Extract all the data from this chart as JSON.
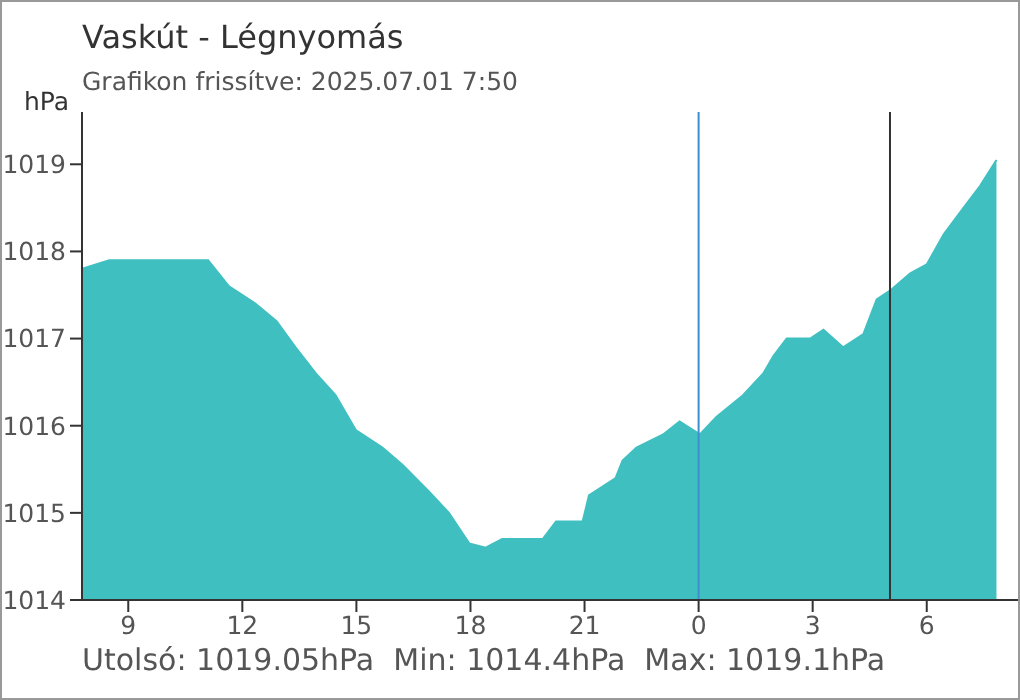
{
  "chart_data": {
    "type": "area",
    "title": "Vaskút - Légnyomás",
    "subtitle": "Grafikon frissítve: 2025.07.01 7:50",
    "ylabel": "hPa",
    "annotations": [
      "Utolsó: 1019.05hPa  Min: 1014.4hPa  Max: 1019.1hPa"
    ],
    "x": [
      "2025-06-30T07:47",
      "2025-06-30T08:30",
      "2025-06-30T09:00",
      "2025-06-30T10:04",
      "2025-06-30T11:06",
      "2025-06-30T11:39",
      "2025-06-30T12:21",
      "2025-06-30T12:54",
      "2025-06-30T13:24",
      "2025-06-30T13:56",
      "2025-06-30T14:27",
      "2025-06-30T14:59",
      "2025-06-30T15:41",
      "2025-06-30T16:13",
      "2025-06-30T16:54",
      "2025-06-30T17:26",
      "2025-06-30T17:58",
      "2025-06-30T18:24",
      "2025-06-30T18:50",
      "2025-06-30T19:22",
      "2025-06-30T19:54",
      "2025-06-30T20:15",
      "2025-06-30T20:57",
      "2025-06-30T21:07",
      "2025-06-30T21:49",
      "2025-06-30T22:00",
      "2025-06-30T22:22",
      "2025-06-30T23:04",
      "2025-06-30T23:30",
      "2025-07-01T00:02",
      "2025-07-01T00:28",
      "2025-07-01T01:10",
      "2025-07-01T01:42",
      "2025-07-01T01:58",
      "2025-07-01T02:19",
      "2025-07-01T02:56",
      "2025-07-01T03:17",
      "2025-07-01T03:48",
      "2025-07-01T04:20",
      "2025-07-01T04:41",
      "2025-07-01T05:02",
      "2025-07-01T05:34",
      "2025-07-01T06:00",
      "2025-07-01T06:27",
      "2025-07-01T07:03",
      "2025-07-01T07:24",
      "2025-07-01T07:50"
    ],
    "series": [
      {
        "color": "#40bfc1",
        "values": [
          1017.8,
          1017.9,
          1017.9,
          1017.9,
          1017.9,
          1017.6,
          1017.4,
          1017.2,
          1016.9,
          1016.6,
          1016.35,
          1015.95,
          1015.75,
          1015.55,
          1015.25,
          1015.0,
          1014.65,
          1014.6,
          1014.7,
          1014.7,
          1014.7,
          1014.9,
          1014.9,
          1015.2,
          1015.4,
          1015.6,
          1015.75,
          1015.9,
          1016.05,
          1015.9,
          1016.1,
          1016.35,
          1016.6,
          1016.8,
          1017.0,
          1017.0,
          1017.1,
          1016.9,
          1017.05,
          1017.45,
          1017.55,
          1017.75,
          1017.85,
          1018.2,
          1018.55,
          1018.75,
          1019.05
        ]
      }
    ],
    "xlim": [
      "2025-06-30T07:47",
      "2025-07-01T08:24"
    ],
    "xticks": [
      {
        "value": "2025-06-30T09:00",
        "label": "9"
      },
      {
        "value": "2025-06-30T12:00",
        "label": "12"
      },
      {
        "value": "2025-06-30T15:00",
        "label": "15"
      },
      {
        "value": "2025-06-30T18:00",
        "label": "18"
      },
      {
        "value": "2025-06-30T21:00",
        "label": "21"
      },
      {
        "value": "2025-07-01T00:00",
        "label": "0"
      },
      {
        "value": "2025-07-01T03:00",
        "label": "3"
      },
      {
        "value": "2025-07-01T06:00",
        "label": "6"
      }
    ],
    "ylim": [
      1014,
      1019.6
    ],
    "yticks": [
      1014,
      1015,
      1016,
      1017,
      1018,
      1019
    ],
    "ref_lines": [
      {
        "axis": "x",
        "value": "2025-07-01T00:00",
        "color": "#3d8fcf"
      },
      {
        "axis": "x",
        "value": "2025-07-01T05:02",
        "color": "#333333"
      }
    ],
    "grid": false,
    "legend": false
  }
}
